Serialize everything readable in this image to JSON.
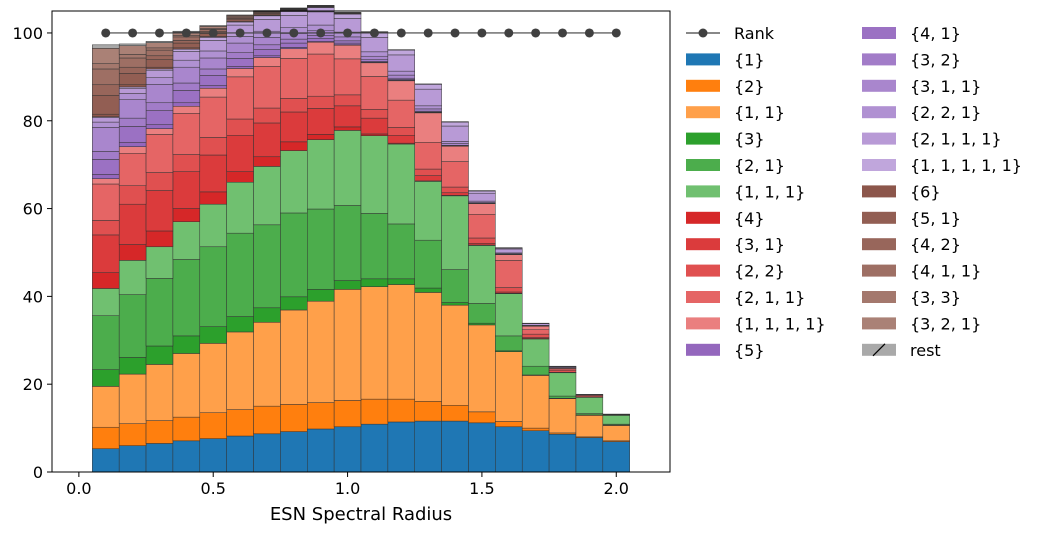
{
  "chart_data": {
    "type": "area",
    "style": "stacked-step",
    "xlabel": "ESN Spectral Radius",
    "ylabel": "",
    "xlim": [
      -0.1,
      2.2
    ],
    "ylim": [
      0,
      105
    ],
    "xticks": [
      "0.0",
      "0.5",
      "1.0",
      "1.5",
      "2.0"
    ],
    "xtick_values": [
      0.0,
      0.5,
      1.0,
      1.5,
      2.0
    ],
    "yticks": [
      "0",
      "20",
      "40",
      "60",
      "80",
      "100"
    ],
    "ytick_values": [
      0,
      20,
      40,
      60,
      80,
      100
    ],
    "x": [
      0.1,
      0.2,
      0.3,
      0.4,
      0.5,
      0.6,
      0.7,
      0.8,
      0.9,
      1.0,
      1.1,
      1.2,
      1.3,
      1.4,
      1.5,
      1.6,
      1.7,
      1.8,
      1.9,
      2.0
    ],
    "legend_position": "right",
    "rank_series": {
      "name": "Rank",
      "values": [
        100,
        100,
        100,
        100,
        100,
        100,
        100,
        100,
        100,
        100,
        100,
        100,
        100,
        100,
        100,
        100,
        100,
        100,
        100,
        100
      ],
      "color": "#404040"
    },
    "series": [
      {
        "name": "{1}",
        "color": "#1f77b4",
        "values": [
          5.3,
          6.0,
          6.5,
          7.1,
          7.6,
          8.2,
          8.7,
          9.2,
          9.8,
          10.3,
          10.9,
          11.4,
          11.6,
          11.6,
          11.2,
          10.3,
          9.4,
          8.6,
          7.8,
          6.9
        ]
      },
      {
        "name": "{2}",
        "color": "#ff7f0e",
        "values": [
          4.9,
          5.0,
          5.2,
          5.4,
          5.9,
          6.0,
          6.3,
          6.2,
          6.0,
          6.0,
          5.7,
          5.2,
          4.5,
          3.6,
          2.5,
          1.2,
          0.6,
          0.3,
          0.2,
          0.2
        ]
      },
      {
        "name": "{1, 1}",
        "color": "#ffa04a",
        "values": [
          9.3,
          11.3,
          12.8,
          14.5,
          15.8,
          17.7,
          19.1,
          21.5,
          23.1,
          25.3,
          25.6,
          26.1,
          24.8,
          22.8,
          19.8,
          15.9,
          12.0,
          7.8,
          4.9,
          3.5
        ]
      },
      {
        "name": "{3}",
        "color": "#2ca02c",
        "values": [
          3.8,
          3.8,
          4.2,
          4.0,
          3.8,
          3.5,
          3.3,
          3.0,
          2.7,
          2.0,
          1.8,
          1.3,
          1.0,
          0.6,
          0.4,
          0.2,
          0.1,
          0.1,
          0.1,
          0.1
        ]
      },
      {
        "name": "{2, 1}",
        "color": "#4cad4c",
        "values": [
          12.3,
          14.3,
          15.4,
          17.4,
          18.2,
          19.0,
          18.9,
          19.1,
          18.3,
          17.1,
          14.9,
          12.5,
          10.9,
          7.5,
          4.5,
          3.4,
          2.0,
          0.5,
          0.3,
          0.2
        ]
      },
      {
        "name": "{1, 1, 1}",
        "color": "#70c070",
        "values": [
          6.2,
          7.8,
          7.2,
          8.6,
          9.7,
          11.6,
          13.3,
          14.2,
          15.8,
          17.1,
          17.7,
          18.2,
          13.4,
          16.8,
          13.2,
          9.6,
          6.2,
          5.3,
          3.7,
          2.0
        ]
      },
      {
        "name": "{4}",
        "color": "#d62728",
        "values": [
          3.6,
          3.6,
          3.6,
          3.0,
          2.8,
          2.4,
          2.2,
          2.0,
          1.2,
          0.8,
          0.4,
          0.2,
          0.1,
          0.1,
          0.1,
          0.1,
          0.1,
          0,
          0,
          0
        ]
      },
      {
        "name": "{3, 1}",
        "color": "#db3b3c",
        "values": [
          8.6,
          9.2,
          9.2,
          8.4,
          8.4,
          8.3,
          7.7,
          6.8,
          5.9,
          4.8,
          3.6,
          1.8,
          1.2,
          0.6,
          0.4,
          0.3,
          0.2,
          0.1,
          0,
          0
        ]
      },
      {
        "name": "{2, 2}",
        "color": "#e05050",
        "values": [
          3.3,
          4.2,
          4.1,
          3.9,
          4.0,
          3.7,
          3.4,
          3.1,
          2.8,
          2.5,
          2.0,
          1.8,
          1.5,
          1.3,
          1.2,
          1.0,
          0.8,
          0.5,
          0.3,
          0.1
        ]
      },
      {
        "name": "{2, 1, 1}",
        "color": "#e56565",
        "values": [
          8.3,
          7.4,
          8.7,
          9.4,
          9.2,
          9.6,
          9.5,
          9.1,
          9.6,
          8.2,
          7.5,
          6.2,
          6.1,
          5.8,
          5.4,
          6.2,
          1.0,
          0.3,
          0.2,
          0.1
        ]
      },
      {
        "name": "{1, 1, 1, 1}",
        "color": "#ea7f7f",
        "values": [
          1.2,
          1.5,
          1.3,
          1.6,
          2.0,
          1.9,
          2.0,
          2.2,
          2.7,
          3.1,
          3.1,
          4.4,
          6.7,
          3.5,
          2.4,
          1.3,
          0.8,
          0.2,
          0.1,
          0.1
        ]
      },
      {
        "name": "{5}",
        "color": "#9467bd",
        "values": [
          1.0,
          1.0,
          0.9,
          0.8,
          0.6,
          0.5,
          0.4,
          0.3,
          0.2,
          0.1,
          0.1,
          0.1,
          0.1,
          0,
          0,
          0,
          0,
          0,
          0,
          0
        ]
      },
      {
        "name": "{4, 1}",
        "color": "#9b71c3",
        "values": [
          3.4,
          3.6,
          3.2,
          2.8,
          2.3,
          1.8,
          1.4,
          1.0,
          0.6,
          0.4,
          0.2,
          0.2,
          0.1,
          0.1,
          0,
          0,
          0,
          0,
          0,
          0
        ]
      },
      {
        "name": "{3, 2}",
        "color": "#a27cc8",
        "values": [
          1.8,
          1.9,
          1.8,
          1.7,
          1.5,
          1.3,
          1.1,
          0.9,
          0.7,
          0.5,
          0.4,
          0.3,
          0.2,
          0.1,
          0.1,
          0.1,
          0,
          0,
          0,
          0
        ]
      },
      {
        "name": "{3, 1, 1}",
        "color": "#a986cd",
        "values": [
          5.5,
          4.2,
          4.2,
          3.6,
          2.5,
          2.2,
          1.7,
          1.3,
          1.1,
          0.9,
          0.8,
          0.7,
          0.5,
          0.4,
          0.2,
          0.1,
          0.1,
          0,
          0,
          0
        ]
      },
      {
        "name": "{2, 2, 1}",
        "color": "#b091d2",
        "values": [
          1.2,
          1.4,
          1.5,
          1.6,
          1.6,
          1.5,
          1.4,
          1.3,
          1.3,
          1.1,
          1.0,
          0.9,
          0.7,
          0.5,
          0.3,
          0.2,
          0.1,
          0.1,
          0,
          0
        ]
      },
      {
        "name": "{2, 1, 1, 1}",
        "color": "#b89ad6",
        "values": [
          1.0,
          1.2,
          1.6,
          2.0,
          2.4,
          2.6,
          2.7,
          2.8,
          3.0,
          3.1,
          3.3,
          3.7,
          3.8,
          3.5,
          1.8,
          0.9,
          0.4,
          0.2,
          0.1,
          0
        ]
      },
      {
        "name": "{1, 1, 1, 1, 1}",
        "color": "#c0a6dc",
        "values": [
          0.2,
          0.3,
          0.4,
          0.5,
          0.7,
          0.7,
          0.8,
          0.9,
          1.0,
          1.0,
          1.1,
          1.1,
          1.1,
          0.9,
          0.5,
          0.2,
          0.1,
          0.1,
          0,
          0
        ]
      },
      {
        "name": "{6}",
        "color": "#8c564b",
        "values": [
          0.6,
          0.5,
          0.4,
          0.3,
          0.2,
          0.1,
          0.1,
          0.1,
          0,
          0,
          0,
          0,
          0,
          0,
          0,
          0,
          0,
          0,
          0,
          0
        ]
      },
      {
        "name": "{5, 1}",
        "color": "#925e53",
        "values": [
          4.3,
          2.6,
          1.7,
          1.1,
          0.7,
          0.4,
          0.3,
          0.2,
          0.1,
          0.1,
          0,
          0,
          0,
          0,
          0,
          0,
          0,
          0,
          0,
          0
        ]
      },
      {
        "name": "{4, 2}",
        "color": "#98665b",
        "values": [
          2.4,
          1.4,
          0.9,
          0.6,
          0.4,
          0.3,
          0.2,
          0.1,
          0.1,
          0,
          0,
          0,
          0,
          0,
          0,
          0,
          0,
          0,
          0,
          0
        ]
      },
      {
        "name": "{4, 1, 1}",
        "color": "#9e6f64",
        "values": [
          3.6,
          2.1,
          1.3,
          0.8,
          0.5,
          0.3,
          0.2,
          0.1,
          0.1,
          0.1,
          0,
          0,
          0,
          0,
          0,
          0,
          0,
          0,
          0,
          0
        ]
      },
      {
        "name": "{3, 3}",
        "color": "#a4786d",
        "values": [
          1.2,
          0.8,
          0.5,
          0.3,
          0.2,
          0.1,
          0.1,
          0.1,
          0,
          0,
          0,
          0,
          0,
          0,
          0,
          0,
          0,
          0,
          0,
          0
        ]
      },
      {
        "name": "{3, 2, 1}",
        "color": "#aa8176",
        "values": [
          3.5,
          2.0,
          1.2,
          0.8,
          0.5,
          0.3,
          0.2,
          0.1,
          0.1,
          0.1,
          0.1,
          0,
          0,
          0,
          0,
          0,
          0,
          0,
          0,
          0
        ]
      },
      {
        "name": "rest",
        "color": "#a9a9a9",
        "values": [
          0.8,
          0.4,
          0.3,
          0.2,
          0.2,
          0.1,
          0.1,
          0.1,
          0.1,
          0.1,
          0.1,
          0.1,
          0.1,
          0.1,
          0.1,
          0.1,
          0,
          0,
          0,
          0
        ]
      }
    ]
  }
}
